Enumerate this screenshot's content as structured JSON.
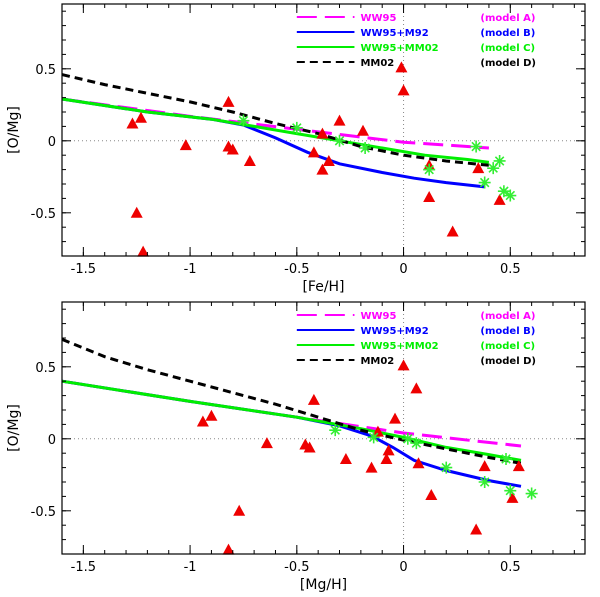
{
  "chart_data": [
    {
      "type": "line",
      "xlabel": "[Fe/H]",
      "ylabel": "[O/Mg]",
      "xlim": [
        -1.6,
        0.85
      ],
      "ylim": [
        -0.8,
        0.95
      ],
      "xticks": [
        -1.5,
        -1,
        -0.5,
        0,
        0.5
      ],
      "xtick_labels": [
        "-1.5",
        "-1",
        "-0.5",
        "0",
        "0.5"
      ],
      "yticks": [
        -0.5,
        0,
        0.5
      ],
      "ytick_labels": [
        "-0.5",
        "0",
        "0.5"
      ],
      "ref_lines": {
        "x": 0,
        "y": 0
      },
      "legend": [
        {
          "label": "WW95",
          "model": "(model A)",
          "color": "#ff00ff",
          "dash": "long"
        },
        {
          "label": "WW95+M92",
          "model": "(model B)",
          "color": "#0000ff",
          "dash": "solid"
        },
        {
          "label": "WW95+MM02",
          "model": "(model C)",
          "color": "#00ee00",
          "dash": "solid"
        },
        {
          "label": "MM02",
          "model": "(model D)",
          "color": "#000000",
          "dash": "short"
        }
      ],
      "series": [
        {
          "name": "WW95",
          "x": [
            -1.6,
            -1.0,
            -0.5,
            0.0,
            0.4
          ],
          "y": [
            0.29,
            0.17,
            0.08,
            -0.01,
            -0.05
          ]
        },
        {
          "name": "WW95+M92",
          "x": [
            -1.6,
            -1.2,
            -0.9,
            -0.75,
            -0.6,
            -0.45,
            -0.3,
            -0.1,
            0.05,
            0.2,
            0.38
          ],
          "y": [
            0.29,
            0.2,
            0.15,
            0.11,
            0.02,
            -0.08,
            -0.16,
            -0.22,
            -0.26,
            -0.29,
            -0.32
          ]
        },
        {
          "name": "WW95+MM02",
          "x": [
            -1.6,
            -1.2,
            -0.9,
            -0.7,
            -0.5,
            -0.3,
            -0.1,
            0.1,
            0.3,
            0.4
          ],
          "y": [
            0.29,
            0.2,
            0.15,
            0.1,
            0.05,
            0.0,
            -0.05,
            -0.1,
            -0.13,
            -0.15
          ]
        },
        {
          "name": "MM02",
          "x": [
            -1.6,
            -1.4,
            -1.2,
            -1.0,
            -0.8,
            -0.6,
            -0.4,
            -0.2,
            0.0,
            0.2,
            0.4
          ],
          "y": [
            0.46,
            0.39,
            0.33,
            0.27,
            0.2,
            0.12,
            0.05,
            -0.04,
            -0.1,
            -0.14,
            -0.17
          ]
        }
      ],
      "triangles": {
        "x": [
          -1.22,
          -1.25,
          -1.27,
          -1.23,
          -1.02,
          -0.82,
          -0.82,
          -0.8,
          -0.72,
          -0.38,
          -0.38,
          -0.35,
          -0.42,
          -0.3,
          -0.19,
          -0.01,
          0.0,
          0.12,
          0.12,
          0.23,
          0.35,
          0.45
        ],
        "y": [
          -0.77,
          -0.5,
          0.12,
          0.16,
          -0.03,
          0.27,
          -0.04,
          -0.06,
          -0.14,
          0.05,
          -0.2,
          -0.14,
          -0.08,
          0.14,
          0.07,
          0.51,
          0.35,
          -0.17,
          -0.39,
          -0.63,
          -0.19,
          -0.41
        ]
      },
      "asterisks": {
        "x": [
          -0.75,
          -0.5,
          -0.3,
          -0.18,
          0.12,
          0.34,
          0.38,
          0.42,
          0.45,
          0.47,
          0.5
        ],
        "y": [
          0.14,
          0.09,
          0.0,
          -0.05,
          -0.2,
          -0.04,
          -0.29,
          -0.19,
          -0.14,
          -0.35,
          -0.38
        ]
      }
    },
    {
      "type": "line",
      "xlabel": "[Mg/H]",
      "ylabel": "[O/Mg]",
      "xlim": [
        -1.6,
        0.85
      ],
      "ylim": [
        -0.8,
        0.95
      ],
      "xticks": [
        -1.5,
        -1,
        -0.5,
        0,
        0.5
      ],
      "xtick_labels": [
        "-1.5",
        "-1",
        "-0.5",
        "0",
        "0.5"
      ],
      "yticks": [
        -0.5,
        0,
        0.5
      ],
      "ytick_labels": [
        "-0.5",
        "0",
        "0.5"
      ],
      "ref_lines": {
        "x": 0,
        "y": 0
      },
      "legend": [
        {
          "label": "WW95",
          "model": "(model A)",
          "color": "#ff00ff",
          "dash": "long"
        },
        {
          "label": "WW95+M92",
          "model": "(model B)",
          "color": "#0000ff",
          "dash": "solid"
        },
        {
          "label": "WW95+MM02",
          "model": "(model C)",
          "color": "#00ee00",
          "dash": "solid"
        },
        {
          "label": "MM02",
          "model": "(model D)",
          "color": "#000000",
          "dash": "short"
        }
      ],
      "series": [
        {
          "name": "WW95",
          "x": [
            -1.6,
            -1.0,
            -0.5,
            0.0,
            0.55
          ],
          "y": [
            0.4,
            0.26,
            0.15,
            0.04,
            -0.05
          ]
        },
        {
          "name": "WW95+M92",
          "x": [
            -1.6,
            -1.0,
            -0.5,
            -0.3,
            -0.15,
            -0.05,
            0.05,
            0.2,
            0.4,
            0.55
          ],
          "y": [
            0.4,
            0.26,
            0.15,
            0.09,
            0.02,
            -0.06,
            -0.15,
            -0.22,
            -0.29,
            -0.33
          ]
        },
        {
          "name": "WW95+MM02",
          "x": [
            -1.6,
            -1.0,
            -0.5,
            -0.2,
            0.0,
            0.2,
            0.4,
            0.55
          ],
          "y": [
            0.4,
            0.26,
            0.15,
            0.07,
            0.01,
            -0.06,
            -0.11,
            -0.15
          ]
        },
        {
          "name": "MM02",
          "x": [
            -1.6,
            -1.4,
            -1.2,
            -1.0,
            -0.8,
            -0.6,
            -0.4,
            -0.2,
            0.0,
            0.2,
            0.4,
            0.55
          ],
          "y": [
            0.69,
            0.57,
            0.48,
            0.4,
            0.32,
            0.24,
            0.15,
            0.06,
            -0.01,
            -0.07,
            -0.13,
            -0.17
          ]
        }
      ],
      "triangles": {
        "x": [
          -0.82,
          -0.77,
          -0.94,
          -0.9,
          -0.64,
          -0.46,
          -0.44,
          -0.42,
          -0.27,
          -0.15,
          -0.12,
          -0.08,
          -0.07,
          -0.04,
          0.0,
          0.06,
          0.07,
          0.13,
          0.34,
          0.38,
          0.51,
          0.54
        ],
        "y": [
          -0.77,
          -0.5,
          0.12,
          0.16,
          -0.03,
          -0.04,
          -0.06,
          0.27,
          -0.14,
          -0.2,
          0.05,
          -0.14,
          -0.08,
          0.14,
          0.51,
          0.35,
          -0.17,
          -0.39,
          -0.63,
          -0.19,
          -0.41,
          -0.19
        ]
      },
      "asterisks": {
        "x": [
          -0.32,
          -0.14,
          0.02,
          0.06,
          0.2,
          0.38,
          0.48,
          0.5,
          0.6
        ],
        "y": [
          0.06,
          0.01,
          0.0,
          -0.03,
          -0.2,
          -0.3,
          -0.14,
          -0.36,
          -0.38
        ]
      }
    }
  ]
}
